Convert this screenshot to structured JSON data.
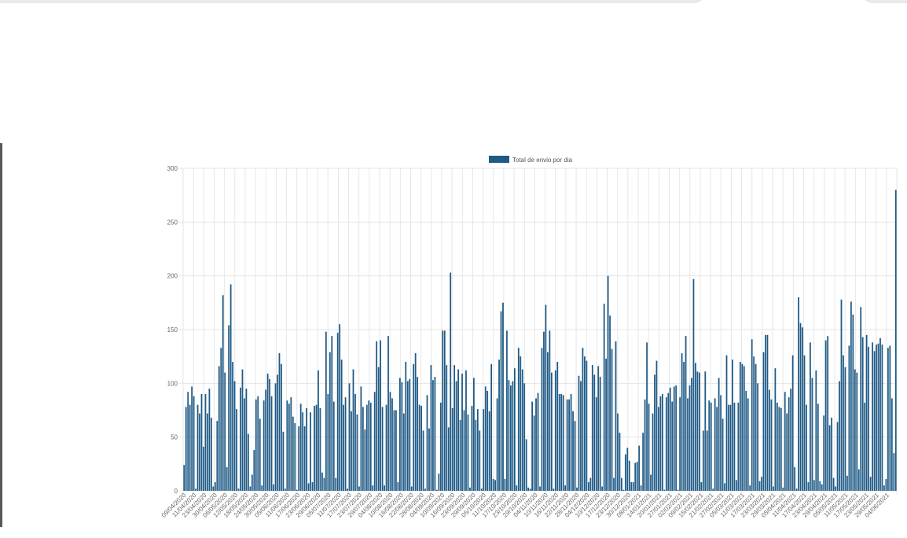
{
  "colors": {
    "bar": "#1f5a86",
    "grid": "#e6e6e6",
    "axis_text": "#666666"
  },
  "chart_data": {
    "type": "bar",
    "legend": {
      "label": "Total de envio por dia",
      "position": "top"
    },
    "grid": true,
    "ylim": [
      0,
      300
    ],
    "y_ticks": [
      "0",
      "50",
      "100",
      "150",
      "200",
      "250",
      "300"
    ],
    "x_tick_labels": [
      "09/04/2020",
      "11/04/2020",
      "23/04/2020",
      "30/04/2020",
      "06/05/2020",
      "12/05/2020",
      "18/05/2020",
      "24/05/2020",
      "30/05/2020",
      "05/06/2020",
      "11/06/2020",
      "17/06/2020",
      "23/06/2020",
      "29/06/2020",
      "05/07/2020",
      "11/07/2020",
      "17/07/2020",
      "23/07/2020",
      "29/07/2020",
      "04/08/2020",
      "10/08/2020",
      "16/08/2020",
      "22/08/2020",
      "28/08/2020",
      "04/09/2020",
      "10/09/2020",
      "16/09/2020",
      "23/09/2020",
      "29/09/2020",
      "05/10/2020",
      "11/10/2020",
      "17/10/2020",
      "23/10/2020",
      "29/10/2020",
      "04/11/2020",
      "10/11/2020",
      "16/11/2020",
      "22/11/2020",
      "28/11/2020",
      "04/12/2020",
      "10/12/2020",
      "17/12/2020",
      "23/12/2020",
      "30/12/2020",
      "08/01/2021",
      "14/01/2021",
      "20/01/2021",
      "27/01/2021",
      "02/02/2021",
      "09/02/2021",
      "15/02/2021",
      "21/02/2021",
      "27/02/2021",
      "05/03/2021",
      "11/03/2021",
      "17/03/2021",
      "23/03/2021",
      "29/03/2021",
      "05/04/2021",
      "11/04/2021",
      "17/04/2021",
      "23/04/2021",
      "29/04/2021",
      "05/05/2021",
      "11/05/2021",
      "17/05/2021",
      "23/05/2021",
      "29/05/2021",
      "04/06/2021"
    ],
    "values": [
      24,
      78,
      92,
      80,
      97,
      88,
      2,
      80,
      72,
      90,
      41,
      90,
      72,
      95,
      68,
      4,
      8,
      65,
      116,
      133,
      182,
      110,
      22,
      154,
      192,
      120,
      102,
      76,
      2,
      96,
      113,
      86,
      95,
      53,
      4,
      15,
      38,
      85,
      88,
      67,
      5,
      84,
      94,
      109,
      104,
      88,
      6,
      100,
      108,
      128,
      118,
      55,
      2,
      84,
      81,
      87,
      69,
      63,
      1,
      60,
      81,
      73,
      60,
      77,
      7,
      73,
      8,
      79,
      80,
      112,
      77,
      17,
      12,
      148,
      90,
      129,
      144,
      83,
      12,
      147,
      155,
      122,
      80,
      87,
      2,
      100,
      74,
      113,
      90,
      71,
      4,
      97,
      78,
      57,
      80,
      84,
      82,
      5,
      92,
      139,
      115,
      140,
      78,
      5,
      80,
      144,
      92,
      86,
      75,
      75,
      8,
      105,
      101,
      72,
      120,
      102,
      104,
      4,
      118,
      128,
      106,
      80,
      79,
      56,
      2,
      89,
      58,
      117,
      103,
      106,
      1,
      16,
      82,
      149,
      149,
      117,
      59,
      203,
      77,
      117,
      102,
      113,
      66,
      109,
      75,
      112,
      71,
      3,
      79,
      105,
      66,
      76,
      56,
      2,
      76,
      97,
      93,
      74,
      118,
      11,
      10,
      86,
      122,
      167,
      175,
      11,
      149,
      103,
      98,
      102,
      114,
      5,
      133,
      125,
      113,
      100,
      48,
      3,
      2,
      83,
      70,
      86,
      91,
      4,
      133,
      148,
      173,
      129,
      149,
      110,
      2,
      112,
      120,
      90,
      90,
      89,
      5,
      85,
      85,
      90,
      74,
      65,
      3,
      107,
      102,
      133,
      125,
      121,
      8,
      12,
      117,
      108,
      87,
      116,
      106,
      4,
      174,
      123,
      200,
      163,
      132,
      12,
      139,
      72,
      54,
      12,
      1,
      34,
      40,
      28,
      8,
      8,
      26,
      27,
      42,
      5,
      54,
      85,
      138,
      81,
      15,
      72,
      108,
      121,
      78,
      88,
      90,
      1,
      87,
      91,
      96,
      83,
      97,
      98,
      1,
      87,
      128,
      120,
      144,
      86,
      98,
      105,
      197,
      119,
      111,
      110,
      8,
      56,
      111,
      56,
      84,
      82,
      2,
      86,
      78,
      105,
      89,
      67,
      7,
      126,
      80,
      80,
      122,
      82,
      10,
      82,
      120,
      118,
      116,
      93,
      86,
      5,
      141,
      125,
      118,
      100,
      9,
      13,
      129,
      145,
      145,
      94,
      85,
      4,
      114,
      82,
      78,
      77,
      3,
      92,
      72,
      87,
      95,
      126,
      22,
      2,
      180,
      156,
      152,
      126,
      80,
      8,
      138,
      105,
      10,
      112,
      81,
      9,
      6,
      70,
      140,
      144,
      61,
      68,
      12,
      4,
      64,
      102,
      178,
      126,
      115,
      14,
      135,
      176,
      164,
      113,
      110,
      20,
      171,
      143,
      82,
      145,
      134,
      13,
      138,
      130,
      136,
      137,
      142,
      136,
      5,
      11,
      133,
      135,
      86,
      35,
      280
    ]
  }
}
